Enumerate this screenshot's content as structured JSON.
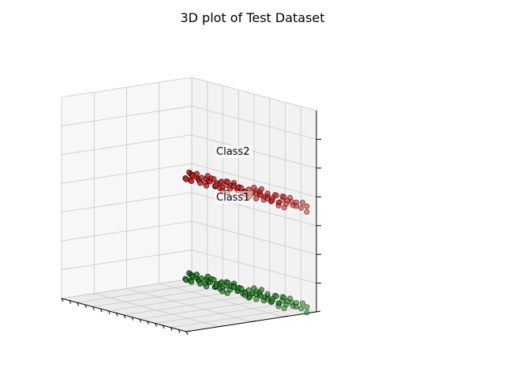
{
  "chart_data": {
    "type": "scatter",
    "projection": "3d",
    "title": "3D plot of Test Dataset",
    "xlabel": "",
    "ylabel": "",
    "zlabel": "",
    "grid": true,
    "tick_labels_visible": false,
    "point_labels": [
      {
        "text": "Class2",
        "series": "Class2"
      },
      {
        "text": "Class1",
        "series": "Class1"
      }
    ],
    "series": [
      {
        "key": "Class2",
        "color": "#1f8a1f",
        "edgecolor": "#000000",
        "points": [
          [
            0.0,
            0.02,
            0.03
          ],
          [
            0.008,
            0.05,
            0.0
          ],
          [
            0.015,
            0.01,
            0.02
          ],
          [
            0.022,
            0.07,
            0.01
          ],
          [
            0.03,
            0.04,
            0.0
          ],
          [
            0.04,
            0.03,
            0.02
          ],
          [
            0.05,
            0.01,
            0.03
          ],
          [
            0.06,
            0.06,
            0.0
          ],
          [
            0.075,
            0.08,
            0.04
          ],
          [
            0.085,
            0.03,
            0.01
          ],
          [
            0.1,
            0.02,
            0.02
          ],
          [
            0.11,
            0.07,
            0.03
          ],
          [
            0.12,
            0.05,
            0.0
          ],
          [
            0.13,
            0.01,
            0.02
          ],
          [
            0.145,
            0.08,
            0.02
          ],
          [
            0.16,
            0.03,
            0.04
          ],
          [
            0.17,
            0.06,
            0.01
          ],
          [
            0.18,
            0.02,
            0.03
          ],
          [
            0.19,
            0.07,
            0.0
          ],
          [
            0.2,
            0.05,
            0.02
          ],
          [
            0.21,
            0.01,
            0.01
          ],
          [
            0.22,
            0.08,
            0.03
          ],
          [
            0.23,
            0.04,
            0.0
          ],
          [
            0.24,
            0.06,
            0.04
          ],
          [
            0.25,
            0.02,
            0.02
          ],
          [
            0.26,
            0.07,
            0.01
          ],
          [
            0.27,
            0.03,
            0.03
          ],
          [
            0.28,
            0.05,
            0.0
          ],
          [
            0.29,
            0.09,
            0.02
          ],
          [
            0.3,
            0.01,
            0.03
          ],
          [
            0.31,
            0.06,
            0.01
          ],
          [
            0.32,
            0.04,
            0.04
          ],
          [
            0.33,
            0.08,
            0.0
          ],
          [
            0.34,
            0.02,
            0.02
          ],
          [
            0.35,
            0.07,
            0.03
          ],
          [
            0.36,
            0.05,
            0.01
          ],
          [
            0.37,
            0.03,
            0.04
          ],
          [
            0.38,
            0.09,
            0.0
          ],
          [
            0.39,
            0.01,
            0.02
          ],
          [
            0.4,
            0.06,
            0.03
          ],
          [
            0.41,
            0.04,
            0.01
          ],
          [
            0.42,
            0.08,
            0.04
          ],
          [
            0.43,
            0.02,
            0.0
          ],
          [
            0.44,
            0.07,
            0.02
          ],
          [
            0.45,
            0.05,
            0.03
          ],
          [
            0.46,
            0.03,
            0.01
          ],
          [
            0.47,
            0.09,
            0.04
          ],
          [
            0.48,
            0.01,
            0.0
          ],
          [
            0.49,
            0.06,
            0.02
          ],
          [
            0.5,
            0.04,
            0.03
          ],
          [
            0.51,
            0.08,
            0.01
          ],
          [
            0.52,
            0.02,
            0.04
          ],
          [
            0.53,
            0.07,
            0.0
          ],
          [
            0.54,
            0.05,
            0.02
          ],
          [
            0.55,
            0.03,
            0.03
          ],
          [
            0.56,
            0.09,
            0.01
          ],
          [
            0.57,
            0.01,
            0.04
          ],
          [
            0.58,
            0.06,
            0.0
          ],
          [
            0.59,
            0.04,
            0.02
          ],
          [
            0.6,
            0.08,
            0.03
          ],
          [
            0.61,
            0.02,
            0.01
          ],
          [
            0.62,
            0.07,
            0.04
          ],
          [
            0.63,
            0.05,
            0.0
          ],
          [
            0.64,
            0.03,
            0.02
          ],
          [
            0.65,
            0.09,
            0.03
          ],
          [
            0.66,
            0.01,
            0.01
          ],
          [
            0.67,
            0.06,
            0.04
          ],
          [
            0.68,
            0.04,
            0.0
          ],
          [
            0.69,
            0.08,
            0.02
          ],
          [
            0.7,
            0.02,
            0.03
          ],
          [
            0.71,
            0.07,
            0.01
          ],
          [
            0.72,
            0.05,
            0.04
          ],
          [
            0.73,
            0.03,
            0.0
          ],
          [
            0.74,
            0.09,
            0.02
          ],
          [
            0.75,
            0.01,
            0.03
          ],
          [
            0.76,
            0.06,
            0.01
          ],
          [
            0.77,
            0.04,
            0.04
          ],
          [
            0.78,
            0.08,
            0.0
          ],
          [
            0.79,
            0.02,
            0.02
          ],
          [
            0.8,
            0.07,
            0.03
          ],
          [
            0.81,
            0.05,
            0.01
          ],
          [
            0.82,
            0.03,
            0.04
          ],
          [
            0.835,
            0.09,
            0.0
          ],
          [
            0.85,
            0.01,
            0.02
          ],
          [
            0.865,
            0.06,
            0.03
          ],
          [
            0.88,
            0.04,
            0.01
          ],
          [
            0.895,
            0.08,
            0.02
          ],
          [
            0.91,
            0.02,
            0.03
          ],
          [
            0.93,
            0.05,
            0.01
          ],
          [
            0.955,
            0.03,
            0.02
          ],
          [
            0.985,
            0.06,
            0.0
          ]
        ]
      },
      {
        "key": "Class1",
        "color": "#e02020",
        "edgecolor": "#000000",
        "points": [
          [
            0.0,
            0.02,
            0.53
          ],
          [
            0.008,
            0.05,
            0.5
          ],
          [
            0.015,
            0.01,
            0.52
          ],
          [
            0.022,
            0.07,
            0.51
          ],
          [
            0.03,
            0.04,
            0.5
          ],
          [
            0.04,
            0.03,
            0.52
          ],
          [
            0.05,
            0.01,
            0.53
          ],
          [
            0.06,
            0.06,
            0.5
          ],
          [
            0.075,
            0.08,
            0.54
          ],
          [
            0.085,
            0.03,
            0.51
          ],
          [
            0.1,
            0.02,
            0.52
          ],
          [
            0.11,
            0.07,
            0.53
          ],
          [
            0.12,
            0.05,
            0.5
          ],
          [
            0.13,
            0.01,
            0.52
          ],
          [
            0.145,
            0.08,
            0.52
          ],
          [
            0.16,
            0.03,
            0.54
          ],
          [
            0.17,
            0.06,
            0.51
          ],
          [
            0.18,
            0.02,
            0.53
          ],
          [
            0.19,
            0.07,
            0.5
          ],
          [
            0.2,
            0.05,
            0.52
          ],
          [
            0.21,
            0.01,
            0.51
          ],
          [
            0.22,
            0.08,
            0.53
          ],
          [
            0.23,
            0.04,
            0.5
          ],
          [
            0.24,
            0.06,
            0.54
          ],
          [
            0.25,
            0.02,
            0.52
          ],
          [
            0.26,
            0.07,
            0.51
          ],
          [
            0.27,
            0.03,
            0.53
          ],
          [
            0.28,
            0.05,
            0.5
          ],
          [
            0.29,
            0.09,
            0.52
          ],
          [
            0.3,
            0.01,
            0.53
          ],
          [
            0.31,
            0.06,
            0.51
          ],
          [
            0.32,
            0.04,
            0.54
          ],
          [
            0.33,
            0.08,
            0.5
          ],
          [
            0.34,
            0.02,
            0.52
          ],
          [
            0.35,
            0.07,
            0.53
          ],
          [
            0.36,
            0.05,
            0.51
          ],
          [
            0.37,
            0.03,
            0.54
          ],
          [
            0.38,
            0.09,
            0.5
          ],
          [
            0.39,
            0.01,
            0.52
          ],
          [
            0.4,
            0.06,
            0.53
          ],
          [
            0.41,
            0.04,
            0.51
          ],
          [
            0.42,
            0.08,
            0.54
          ],
          [
            0.43,
            0.02,
            0.5
          ],
          [
            0.44,
            0.07,
            0.52
          ],
          [
            0.45,
            0.05,
            0.53
          ],
          [
            0.46,
            0.03,
            0.51
          ],
          [
            0.47,
            0.09,
            0.54
          ],
          [
            0.48,
            0.01,
            0.5
          ],
          [
            0.49,
            0.06,
            0.52
          ],
          [
            0.5,
            0.04,
            0.53
          ],
          [
            0.51,
            0.08,
            0.51
          ],
          [
            0.52,
            0.02,
            0.54
          ],
          [
            0.53,
            0.07,
            0.5
          ],
          [
            0.54,
            0.05,
            0.52
          ],
          [
            0.55,
            0.03,
            0.53
          ],
          [
            0.56,
            0.09,
            0.51
          ],
          [
            0.57,
            0.01,
            0.54
          ],
          [
            0.58,
            0.06,
            0.5
          ],
          [
            0.59,
            0.04,
            0.52
          ],
          [
            0.6,
            0.08,
            0.53
          ],
          [
            0.61,
            0.02,
            0.51
          ],
          [
            0.62,
            0.07,
            0.54
          ],
          [
            0.63,
            0.05,
            0.5
          ],
          [
            0.64,
            0.03,
            0.52
          ],
          [
            0.65,
            0.09,
            0.53
          ],
          [
            0.66,
            0.01,
            0.51
          ],
          [
            0.67,
            0.06,
            0.54
          ],
          [
            0.68,
            0.04,
            0.5
          ],
          [
            0.69,
            0.08,
            0.52
          ],
          [
            0.7,
            0.02,
            0.53
          ],
          [
            0.71,
            0.07,
            0.51
          ],
          [
            0.72,
            0.05,
            0.54
          ],
          [
            0.73,
            0.03,
            0.5
          ],
          [
            0.74,
            0.09,
            0.52
          ],
          [
            0.75,
            0.01,
            0.53
          ],
          [
            0.76,
            0.06,
            0.51
          ],
          [
            0.77,
            0.04,
            0.54
          ],
          [
            0.78,
            0.08,
            0.5
          ],
          [
            0.79,
            0.02,
            0.52
          ],
          [
            0.8,
            0.07,
            0.53
          ],
          [
            0.81,
            0.05,
            0.51
          ],
          [
            0.82,
            0.03,
            0.54
          ],
          [
            0.835,
            0.09,
            0.5
          ],
          [
            0.85,
            0.01,
            0.52
          ],
          [
            0.865,
            0.06,
            0.53
          ],
          [
            0.88,
            0.04,
            0.51
          ],
          [
            0.895,
            0.08,
            0.52
          ],
          [
            0.91,
            0.02,
            0.53
          ],
          [
            0.93,
            0.05,
            0.51
          ],
          [
            0.955,
            0.03,
            0.52
          ],
          [
            0.985,
            0.06,
            0.5
          ]
        ]
      }
    ]
  }
}
